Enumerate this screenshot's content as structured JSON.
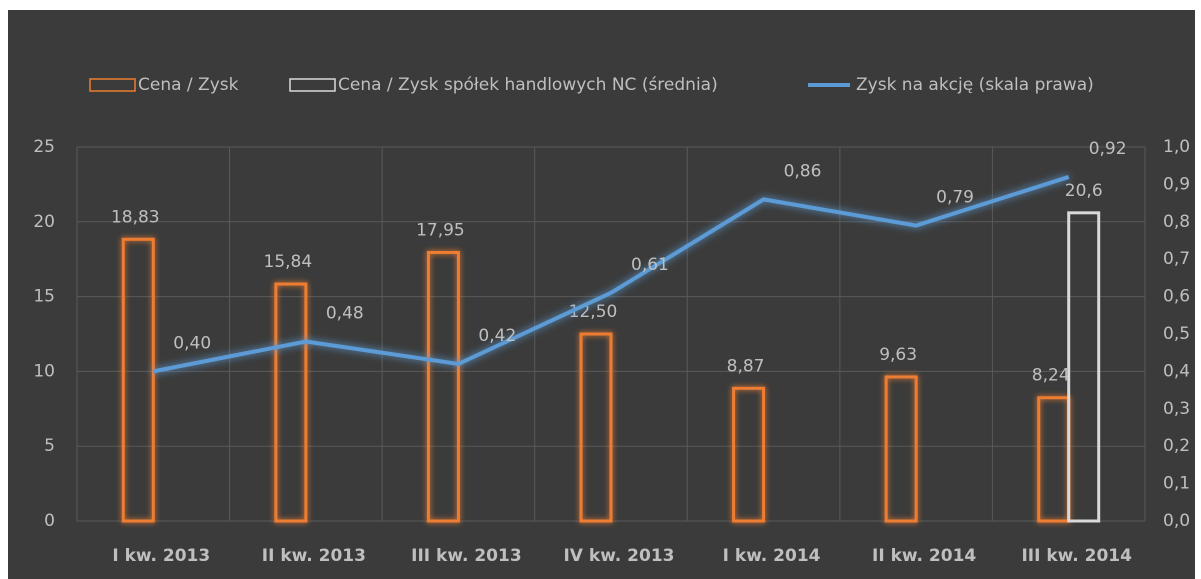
{
  "chart_data": {
    "type": "bar-line",
    "categories": [
      "I kw. 2013",
      "II kw. 2013",
      "III kw. 2013",
      "IV kw. 2013",
      "I kw. 2014",
      "II kw. 2014",
      "III kw. 2014"
    ],
    "series": [
      {
        "name": "Cena / Zysk",
        "color": "#ed7d31",
        "type": "bar",
        "values": [
          18.83,
          15.84,
          17.95,
          12.5,
          8.87,
          9.63,
          8.24
        ],
        "value_labels": [
          "18,83",
          "15,84",
          "17,95",
          "12,50",
          "8,87",
          "9,63",
          "8,24"
        ]
      },
      {
        "name": "Cena / Zysk spółek handlowych NC (średnia)",
        "color": "#d9d9d9",
        "type": "bar",
        "values": [
          null,
          null,
          null,
          null,
          null,
          null,
          20.6
        ],
        "value_labels": [
          null,
          null,
          null,
          null,
          null,
          null,
          "20,6"
        ]
      },
      {
        "name": "Zysk na akcję (skala prawa)",
        "color": "#5b9bd5",
        "type": "line",
        "axis": "y2",
        "values": [
          0.4,
          0.48,
          0.42,
          0.61,
          0.86,
          0.79,
          0.92
        ],
        "value_labels": [
          "0,40",
          "0,48",
          "0,42",
          "0,61",
          "0,86",
          "0,79",
          "0,92"
        ]
      }
    ],
    "ylim": [
      0,
      25
    ],
    "yticks": [
      0,
      5,
      10,
      15,
      20,
      25
    ],
    "y2lim": [
      0,
      1
    ],
    "y2ticks": [
      {
        "value": 0,
        "label": "0,0"
      },
      {
        "value": 0.1,
        "label": "0,1"
      },
      {
        "value": 0.2,
        "label": "0,2"
      },
      {
        "value": 0.3,
        "label": "0,3"
      },
      {
        "value": 0.4,
        "label": "0,4"
      },
      {
        "value": 0.5,
        "label": "0,5"
      },
      {
        "value": 0.6,
        "label": "0,6"
      },
      {
        "value": 0.7,
        "label": "0,7"
      },
      {
        "value": 0.8,
        "label": "0,8"
      },
      {
        "value": 0.9,
        "label": "0,9"
      },
      {
        "value": 1,
        "label": "1,0"
      }
    ],
    "grid": true,
    "legend": "top"
  }
}
